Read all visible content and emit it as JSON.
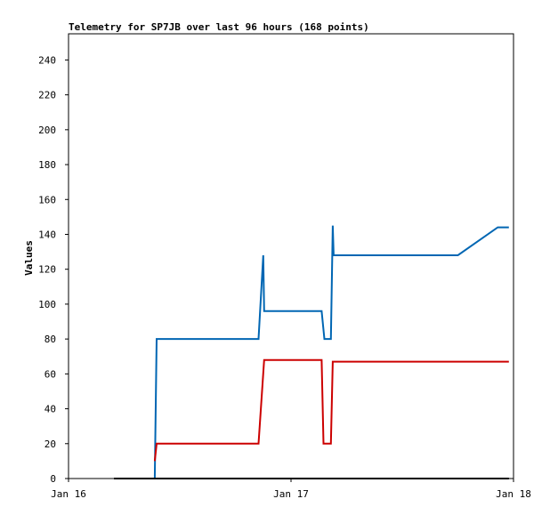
{
  "chart_data": {
    "type": "line",
    "title": "Telemetry for SP7JB over last 96 hours (168 points)",
    "y_label": "Values",
    "xlim": [
      0,
      48
    ],
    "xticks": [
      {
        "value": 0,
        "label": "Jan 16"
      },
      {
        "value": 24,
        "label": "Jan 17"
      },
      {
        "value": 48,
        "label": "Jan 18"
      }
    ],
    "ylim": [
      0,
      255
    ],
    "yticks": [
      0,
      20,
      40,
      60,
      80,
      100,
      120,
      140,
      160,
      180,
      200,
      220,
      240
    ],
    "grid": false,
    "series": [
      {
        "color": "#0066b3",
        "x": [
          9.3,
          9.5,
          20.5,
          21.0,
          21.1,
          27.3,
          27.6,
          28.3,
          28.5,
          28.6,
          42.0,
          46.3,
          47.5
        ],
        "values": [
          0,
          80,
          80,
          128,
          96,
          96,
          80,
          80,
          145,
          128,
          128,
          144,
          144
        ]
      },
      {
        "color": "#cc0000",
        "x": [
          9.3,
          9.5,
          20.5,
          21.1,
          27.3,
          27.5,
          28.3,
          28.5,
          47.5
        ],
        "values": [
          10,
          20,
          20,
          68,
          68,
          20,
          20,
          67,
          67
        ]
      },
      {
        "color": "#000000",
        "x": [
          4.9,
          47.5
        ],
        "values": [
          0,
          0
        ]
      }
    ]
  }
}
